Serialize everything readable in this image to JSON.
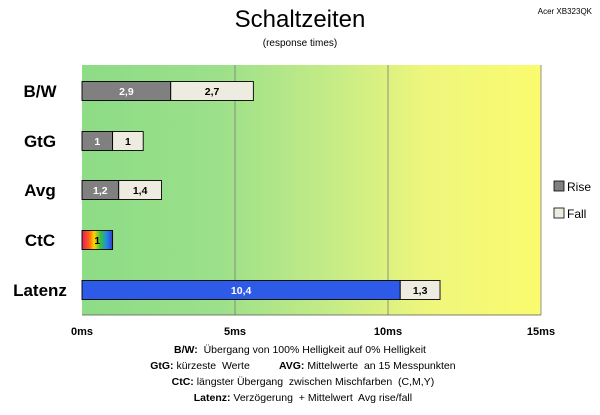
{
  "header": {
    "title": "Schaltzeiten",
    "subtitle": "(response times)",
    "model": "Acer XB323QK"
  },
  "chart_data": {
    "type": "bar",
    "orientation": "horizontal",
    "stacked": true,
    "categories": [
      "B/W",
      "GtG",
      "Avg",
      "CtC",
      "Latenz"
    ],
    "series": [
      {
        "name": "Rise",
        "color": "#808080",
        "values": [
          2.9,
          1,
          1.2,
          null,
          null
        ]
      },
      {
        "name": "Fall",
        "color": "#eeece1",
        "values": [
          2.7,
          1,
          1.4,
          null,
          1.3
        ]
      }
    ],
    "special_bars": [
      {
        "category": "CtC",
        "value": 1,
        "label": "1",
        "fill": "rainbow gradient"
      },
      {
        "category": "Latenz",
        "value": 10.4,
        "label": "10,4",
        "color": "#2e5ae8"
      }
    ],
    "bar_labels": {
      "B/W": [
        "2,9",
        "2,7"
      ],
      "GtG": [
        "1",
        "1"
      ],
      "Avg": [
        "1,2",
        "1,4"
      ],
      "CtC": [
        "1"
      ],
      "Latenz": [
        "10,4",
        "1,3"
      ]
    },
    "x_axis": {
      "ticks": [
        0,
        5,
        10,
        15
      ],
      "tick_labels": [
        "0ms",
        "5ms",
        "10ms",
        "15ms"
      ],
      "range": [
        0,
        15
      ]
    },
    "background": "gradient green to yellow",
    "grid": "vertical at 5ms intervals",
    "legend": {
      "position": "right",
      "items": [
        "Rise",
        "Fall"
      ]
    }
  },
  "footnotes": [
    {
      "bold": "B/W:",
      "text": "  Übergang von 100% Helligkeit auf 0% Helligkeit"
    },
    {
      "bold": "GtG:",
      "text": " kürzeste  Werte          ",
      "bold2": "AVG:",
      "text2": " Mittelwerte  an 15 Messpunkten"
    },
    {
      "bold": "CtC:",
      "text": " längster Übergang  zwischen Mischfarben  (C,M,Y)"
    },
    {
      "bold": "Latenz:",
      "text": " Verzögerung  + Mittelwert  Avg rise/fall"
    }
  ]
}
